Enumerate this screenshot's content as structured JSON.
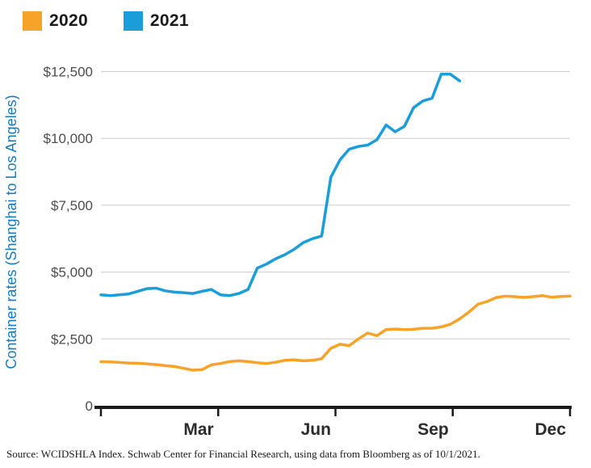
{
  "legend": {
    "items": [
      {
        "label": "2020",
        "color": "#f7a329"
      },
      {
        "label": "2021",
        "color": "#1b9dd9"
      }
    ]
  },
  "chart_data": {
    "type": "line",
    "title": "",
    "xlabel": "",
    "ylabel": "Container rates (Shanghai to Los Angeles)",
    "ylim": [
      0,
      13000
    ],
    "x_unit": "week",
    "grid": true,
    "legend_position": "top-left",
    "yticks": [
      {
        "value": 0,
        "label": "0"
      },
      {
        "value": 2500,
        "label": "$2,500"
      },
      {
        "value": 5000,
        "label": "$5,000"
      },
      {
        "value": 7500,
        "label": "$7,500"
      },
      {
        "value": 10000,
        "label": "$10,000"
      },
      {
        "value": 12500,
        "label": "$12,500"
      }
    ],
    "xticks": [
      {
        "label": "Mar",
        "position": 0.2083
      },
      {
        "label": "Jun",
        "position": 0.4583
      },
      {
        "label": "Sep",
        "position": 0.7083
      },
      {
        "label": "Dec",
        "position": 0.9583
      }
    ],
    "axis_tick_positions": [
      0,
      0.25,
      0.5,
      0.75,
      1
    ],
    "style": {
      "grid_color": "#cccccc",
      "axis_color": "#1a1a1a",
      "tick_label_color": "#4d4d4d",
      "xlabel_color": "#2b2b2b",
      "ylabel_color": "#1879be"
    },
    "series": [
      {
        "name": "2020",
        "color": "#f7a329",
        "values": [
          1650,
          1640,
          1620,
          1600,
          1590,
          1570,
          1540,
          1500,
          1470,
          1400,
          1330,
          1350,
          1530,
          1580,
          1650,
          1680,
          1650,
          1610,
          1580,
          1630,
          1700,
          1720,
          1680,
          1700,
          1760,
          2150,
          2300,
          2250,
          2500,
          2720,
          2620,
          2850,
          2870,
          2850,
          2860,
          2900,
          2900,
          2950,
          3050,
          3250,
          3500,
          3800,
          3900,
          4050,
          4100,
          4080,
          4050,
          4080,
          4120,
          4060,
          4090,
          4100
        ]
      },
      {
        "name": "2021",
        "color": "#1b9dd9",
        "values": [
          4150,
          4120,
          4150,
          4180,
          4280,
          4380,
          4400,
          4300,
          4250,
          4230,
          4200,
          4280,
          4350,
          4150,
          4120,
          4200,
          4350,
          5150,
          5300,
          5500,
          5650,
          5850,
          6100,
          6250,
          6350,
          8550,
          9200,
          9600,
          9700,
          9750,
          9950,
          10500,
          10250,
          10450,
          11150,
          11400,
          11500,
          12400,
          12400,
          12150
        ]
      }
    ]
  },
  "footer": {
    "source": "Source: WCIDSHLA Index. Schwab Center for Financial Research, using data from Bloomberg as of 10/1/2021."
  }
}
